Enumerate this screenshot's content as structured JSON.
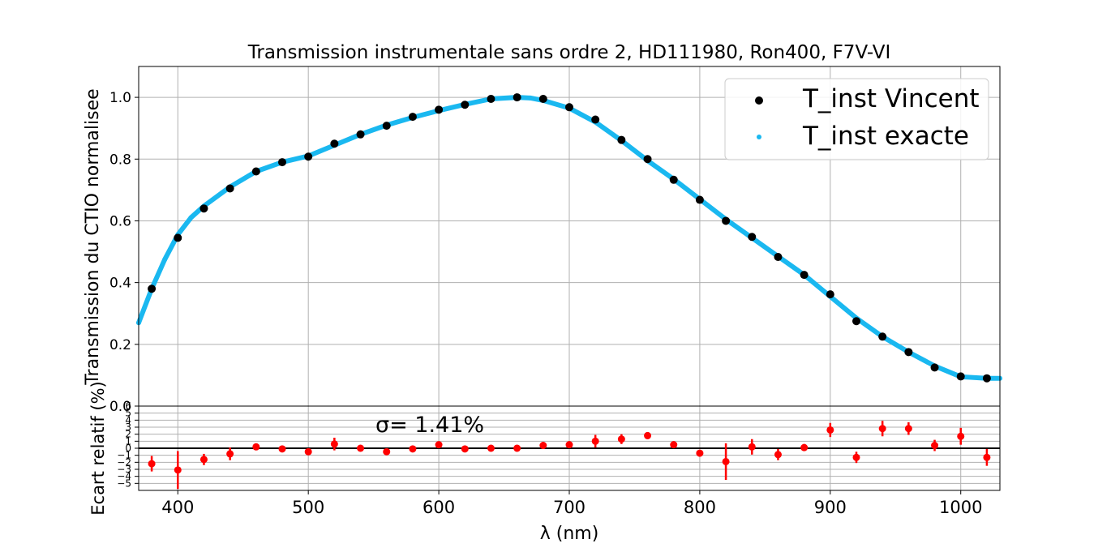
{
  "chart_data": [
    {
      "type": "scatter",
      "title": "Transmission instrumentale sans ordre 2, HD111980, Ron400, F7V-VI",
      "ylabel": "Transmission du CTIO normalisee",
      "xlim": [
        370,
        1030
      ],
      "ylim": [
        0.0,
        1.1
      ],
      "yticks": [
        "0.0",
        "0.2",
        "0.4",
        "0.6",
        "0.8",
        "1.0"
      ],
      "grid": true,
      "legend_position": "top-right",
      "series": [
        {
          "name": "T_inst Vincent",
          "color": "#000000",
          "marker": "point",
          "x": [
            380,
            400,
            420,
            440,
            460,
            480,
            500,
            520,
            540,
            560,
            580,
            600,
            620,
            640,
            660,
            680,
            700,
            720,
            740,
            760,
            780,
            800,
            820,
            840,
            860,
            880,
            900,
            920,
            940,
            960,
            980,
            1000,
            1020
          ],
          "y": [
            0.38,
            0.545,
            0.64,
            0.705,
            0.76,
            0.79,
            0.808,
            0.85,
            0.88,
            0.908,
            0.937,
            0.96,
            0.976,
            0.995,
            1.0,
            0.995,
            0.968,
            0.928,
            0.862,
            0.8,
            0.733,
            0.668,
            0.6,
            0.548,
            0.483,
            0.425,
            0.362,
            0.275,
            0.225,
            0.175,
            0.125,
            0.096,
            0.09
          ]
        },
        {
          "name": "T_inst exacte",
          "color": "#1ab8f0",
          "marker": "dense-dots",
          "x": [
            370,
            380,
            390,
            400,
            410,
            420,
            440,
            460,
            480,
            500,
            520,
            540,
            560,
            580,
            600,
            620,
            640,
            660,
            670,
            680,
            700,
            720,
            740,
            760,
            780,
            800,
            820,
            840,
            860,
            880,
            900,
            920,
            940,
            960,
            980,
            1000,
            1020,
            1030
          ],
          "y": [
            0.27,
            0.38,
            0.475,
            0.555,
            0.61,
            0.648,
            0.71,
            0.76,
            0.79,
            0.81,
            0.845,
            0.88,
            0.91,
            0.935,
            0.957,
            0.977,
            0.995,
            1.0,
            0.998,
            0.99,
            0.965,
            0.92,
            0.86,
            0.795,
            0.735,
            0.67,
            0.605,
            0.545,
            0.485,
            0.425,
            0.355,
            0.285,
            0.225,
            0.175,
            0.13,
            0.095,
            0.09,
            0.09
          ]
        }
      ]
    },
    {
      "type": "scatter",
      "xlabel": "λ (nm)",
      "ylabel": "Ecart relatif (%)",
      "xlim": [
        370,
        1030
      ],
      "ylim": [
        -6,
        6
      ],
      "xticks": [
        "400",
        "500",
        "600",
        "700",
        "800",
        "900",
        "1000"
      ],
      "yticks": [
        "−5",
        "−4",
        "−3",
        "−2",
        "−1",
        "0",
        "1",
        "2",
        "3",
        "4",
        "5",
        "6"
      ],
      "grid": true,
      "annotation": "σ= 1.41%",
      "series": [
        {
          "color": "#ff0000",
          "marker": "point-with-errorbar",
          "x": [
            380,
            400,
            420,
            440,
            460,
            480,
            500,
            520,
            540,
            560,
            580,
            600,
            620,
            640,
            660,
            680,
            700,
            720,
            740,
            760,
            780,
            800,
            820,
            840,
            860,
            880,
            900,
            920,
            940,
            960,
            980,
            1000,
            1020
          ],
          "y": [
            -2.2,
            -3.1,
            -1.6,
            -0.8,
            0.2,
            -0.1,
            -0.5,
            0.6,
            0.0,
            -0.5,
            -0.1,
            0.5,
            -0.1,
            0.0,
            0.0,
            0.4,
            0.5,
            1.0,
            1.3,
            1.8,
            0.5,
            -0.7,
            -1.9,
            0.2,
            -0.9,
            0.1,
            2.6,
            -1.3,
            2.8,
            2.8,
            0.4,
            1.7,
            -1.3
          ],
          "err": [
            1.1,
            2.7,
            0.8,
            0.9,
            0.3,
            0.3,
            0.4,
            0.9,
            0.3,
            0.3,
            0.3,
            0.4,
            0.3,
            0.3,
            0.3,
            0.5,
            0.5,
            0.9,
            0.7,
            0.5,
            0.5,
            0.4,
            2.6,
            1.1,
            0.8,
            0.5,
            1.0,
            0.8,
            1.1,
            0.9,
            0.8,
            1.2,
            1.2
          ]
        }
      ]
    }
  ]
}
